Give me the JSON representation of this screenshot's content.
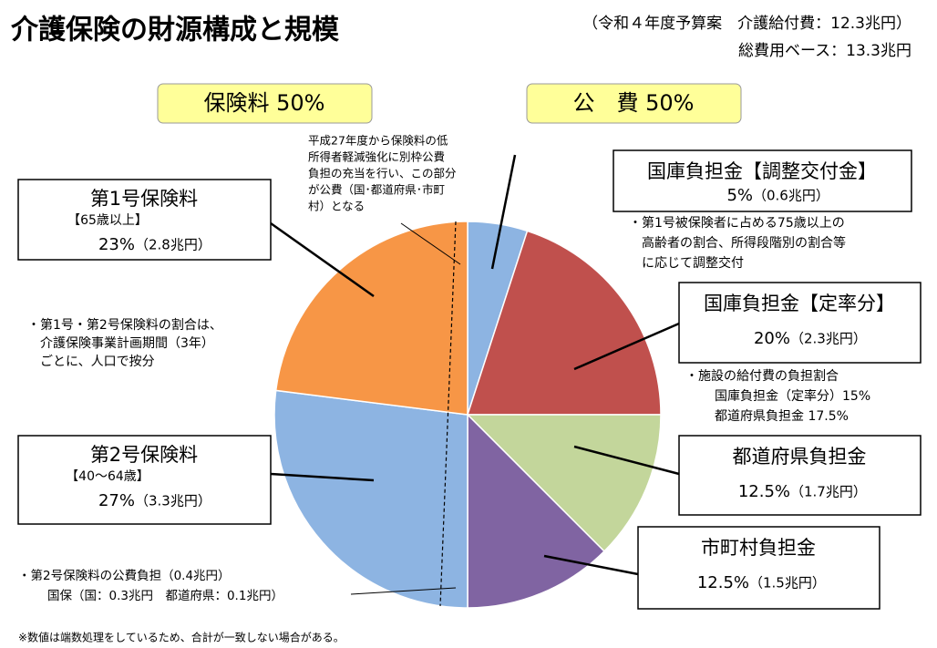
{
  "chart_data": {
    "type": "pie",
    "title": "介護保険の財源構成と規模",
    "subtitle": [
      "（令和４年度予算案　介護給付費：12.3兆円）",
      "総費用ベース：13.3兆円"
    ],
    "group_labels": [
      "保険料 50%",
      "公　費 50%"
    ],
    "categories": [
      "国庫負担金【調整交付金】",
      "国庫負担金【定率分】",
      "都道府県負担金",
      "市町村負担金",
      "第2号保険料",
      "第1号保険料"
    ],
    "values": [
      5,
      20,
      12.5,
      12.5,
      27,
      23
    ],
    "value_labels": [
      "5%",
      "20%",
      "12.5%",
      "12.5%",
      "27%",
      "23%"
    ],
    "amounts": [
      "（0.6兆円）",
      "（2.3兆円）",
      "（1.7兆円）",
      "（1.5兆円）",
      "（3.3兆円）",
      "（2.8兆円）"
    ],
    "age_notes": {
      "4": "【40～64歳】",
      "5": "【65歳以上】"
    },
    "colors": [
      "#8db4e2",
      "#c0504d",
      "#c3d69b",
      "#8064a2",
      "#8db4e2",
      "#f79646"
    ],
    "notes": [
      [
        "平成27年度から保険料の低",
        "所得者軽減強化に別枠公費",
        "負担の充当を行い、この部分",
        "が公費（国･都道府県･市町",
        "村）となる"
      ],
      [
        "・第1号被保険者に占める75歳以上の",
        "高齢者の割合、所得段階別の割合等",
        "に応じて調整交付"
      ],
      [
        "・施設の給付費の負担割合",
        "国庫負担金（定率分）15%",
        "都道府県負担金 17.5%"
      ],
      [
        "・第1号・第2号保険料の割合は、",
        "介護保険事業計画期間（3年）",
        "ごとに、人口で按分"
      ],
      [
        "・第2号保険料の公費負担（0.4兆円）",
        "国保（国：0.3兆円　都道府県：0.1兆円）"
      ]
    ],
    "footnote": "※数値は端数処理をしているため、合計が一致しない場合がある。"
  }
}
